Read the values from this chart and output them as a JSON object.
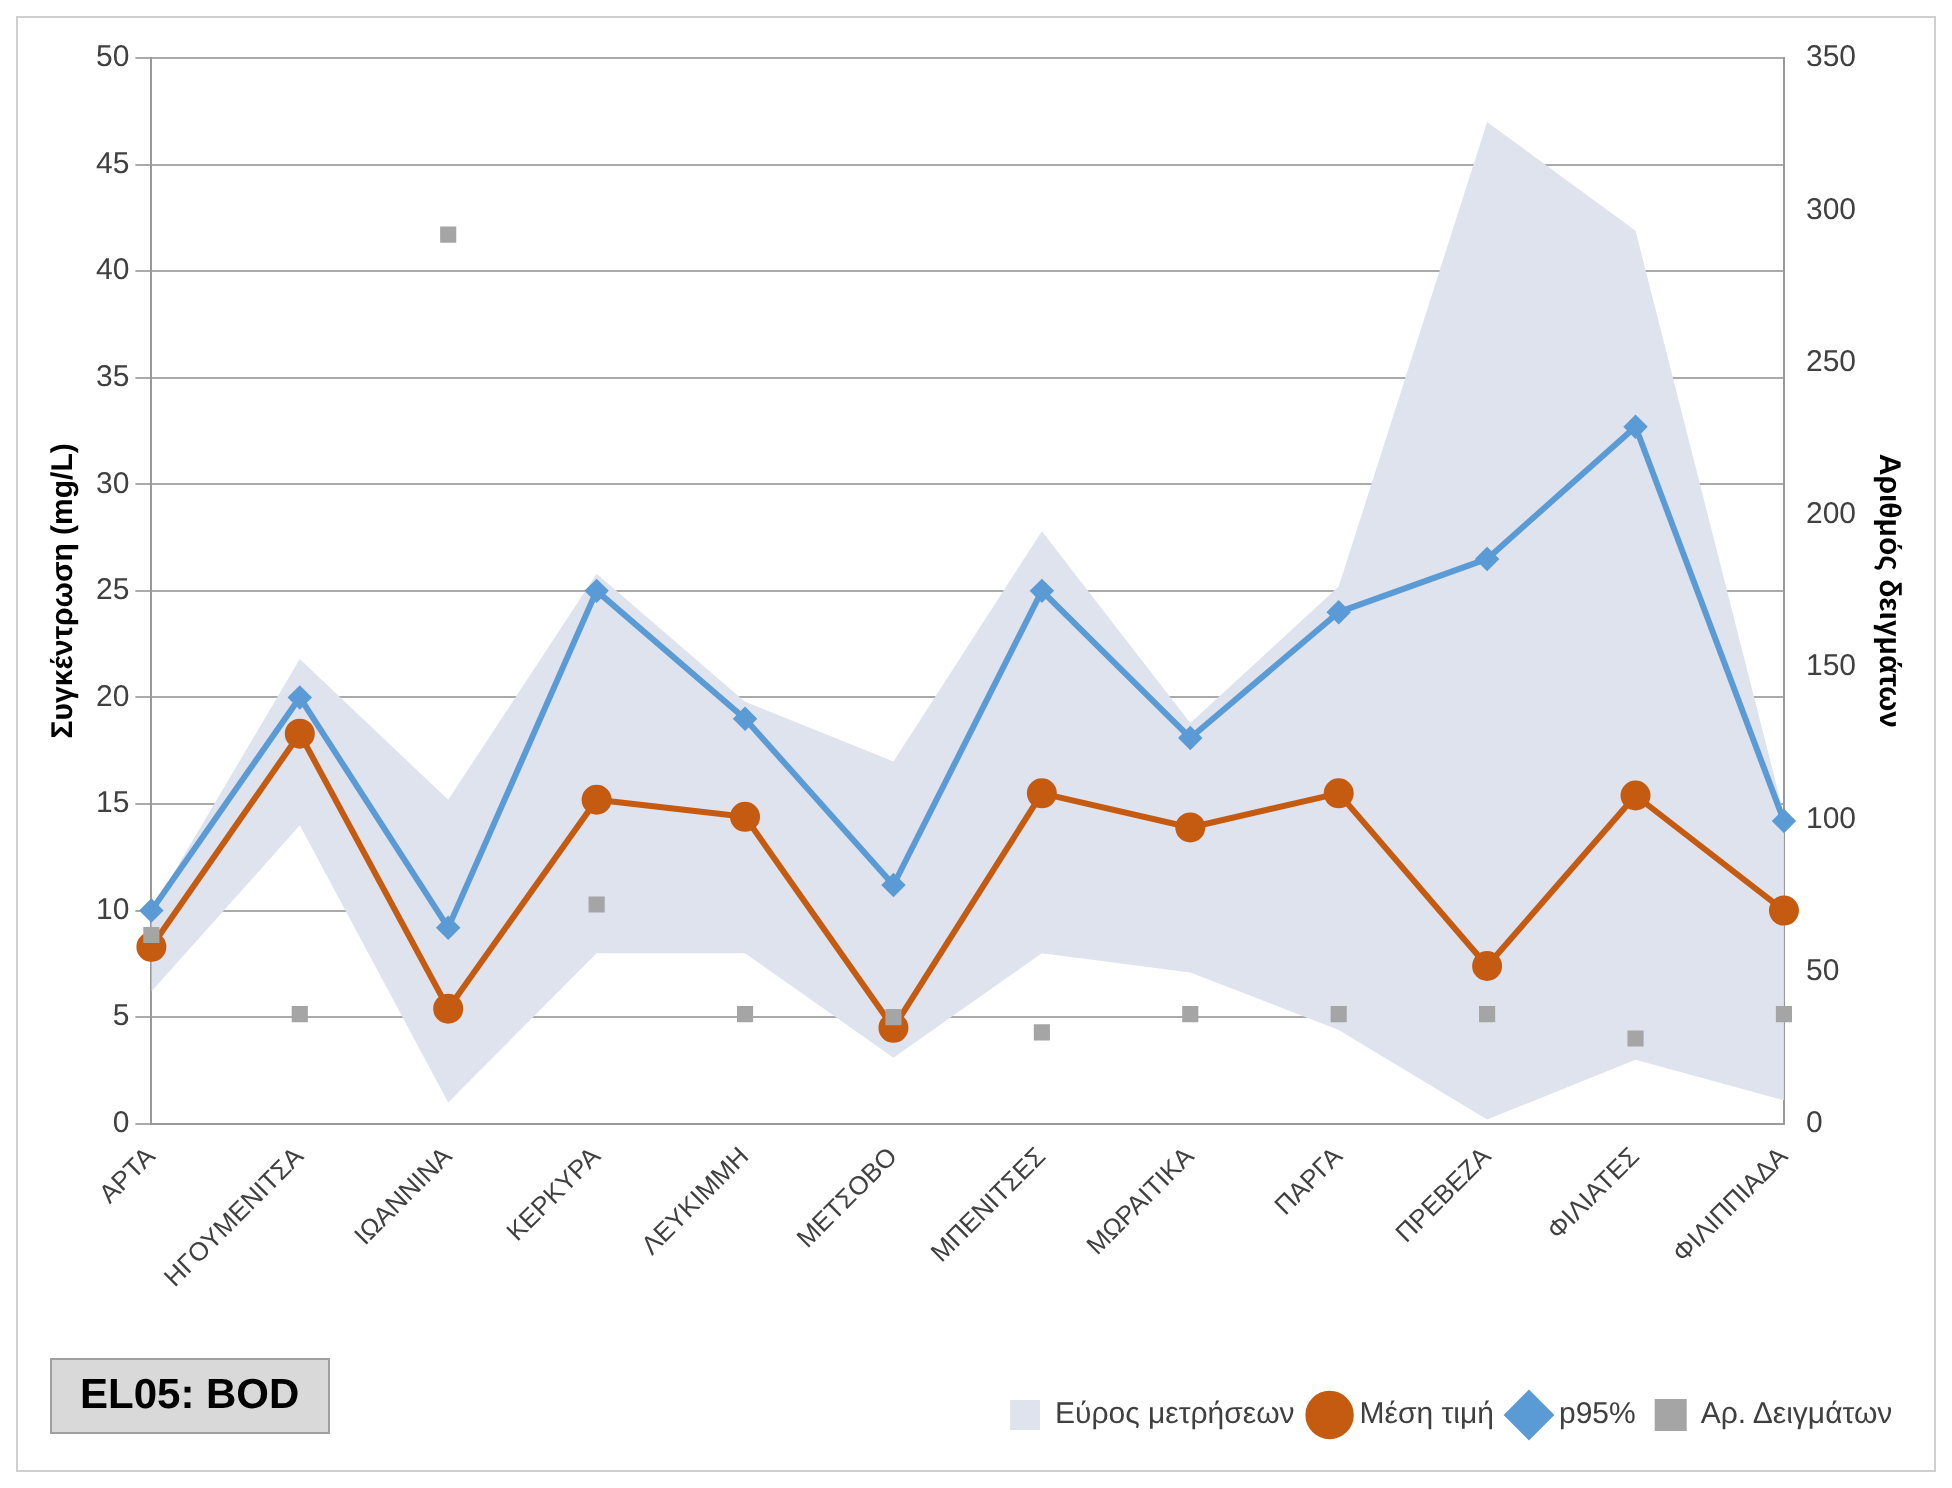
{
  "chart_data": {
    "type": "line",
    "title": "EL05: BOD",
    "ylabel": "Συγκέντρωση (mg/L)",
    "y2label": "Αριθμός δειγμάτων",
    "categories": [
      "ΑΡΤΑ",
      "ΗΓΟΥΜΕΝΙΤΣΑ",
      "ΙΩΑΝΝΙΝΑ",
      "ΚΕΡΚΥΡΑ",
      "ΛΕΥΚΙΜΜΗ",
      "ΜΕΤΣΟΒΟ",
      "ΜΠΕΝΙΤΣΕΣ",
      "ΜΩΡΑΙΤΙΚΑ",
      "ΠΑΡΓΑ",
      "ΠΡΕΒΕΖΑ",
      "ΦΙΛΙΑΤΕΣ",
      "ΦΙΛΙΠΠΙΑΔΑ"
    ],
    "series": [
      {
        "name": "Εύρος μετρήσεων",
        "type": "area",
        "color": "#dfe3ee",
        "values": [
          null,
          null,
          null,
          null,
          null,
          null,
          null,
          null,
          null,
          null,
          null,
          null
        ],
        "upper": [
          10,
          21.8,
          15.2,
          25.8,
          19.8,
          17,
          27.8,
          18.8,
          25.2,
          47,
          41.9,
          14.5
        ],
        "lower": [
          6.2,
          14,
          1,
          8,
          8,
          3.1,
          8,
          7.1,
          4.4,
          0.2,
          3,
          1.1
        ]
      },
      {
        "name": "Μέση τιμή",
        "type": "line",
        "color": "#c55a11",
        "marker": "circle",
        "values": [
          8.3,
          18.3,
          5.4,
          15.2,
          14.4,
          4.5,
          15.5,
          13.9,
          15.5,
          7.4,
          15.4,
          10
        ]
      },
      {
        "name": "p95%",
        "type": "line",
        "color": "#5b9bd5",
        "marker": "diamond",
        "values": [
          10,
          20,
          9.2,
          25,
          19,
          11.2,
          25,
          18.1,
          24,
          26.5,
          32.7,
          14.2
        ]
      },
      {
        "name": "Αρ. Δειγμάτων",
        "type": "scatter",
        "axis": "y2",
        "color": "#a5a5a5",
        "marker": "square",
        "values": [
          62,
          36,
          292,
          72,
          36,
          35,
          30,
          36,
          36,
          36,
          28,
          36
        ]
      }
    ],
    "ylim": [
      0,
      50
    ],
    "yticks": [
      0,
      5,
      10,
      15,
      20,
      25,
      30,
      35,
      40,
      45,
      50
    ],
    "y2lim": [
      0,
      350
    ],
    "y2ticks": [
      0,
      50,
      100,
      150,
      200,
      250,
      300,
      350
    ],
    "grid": "y",
    "legend": "bottom right"
  }
}
